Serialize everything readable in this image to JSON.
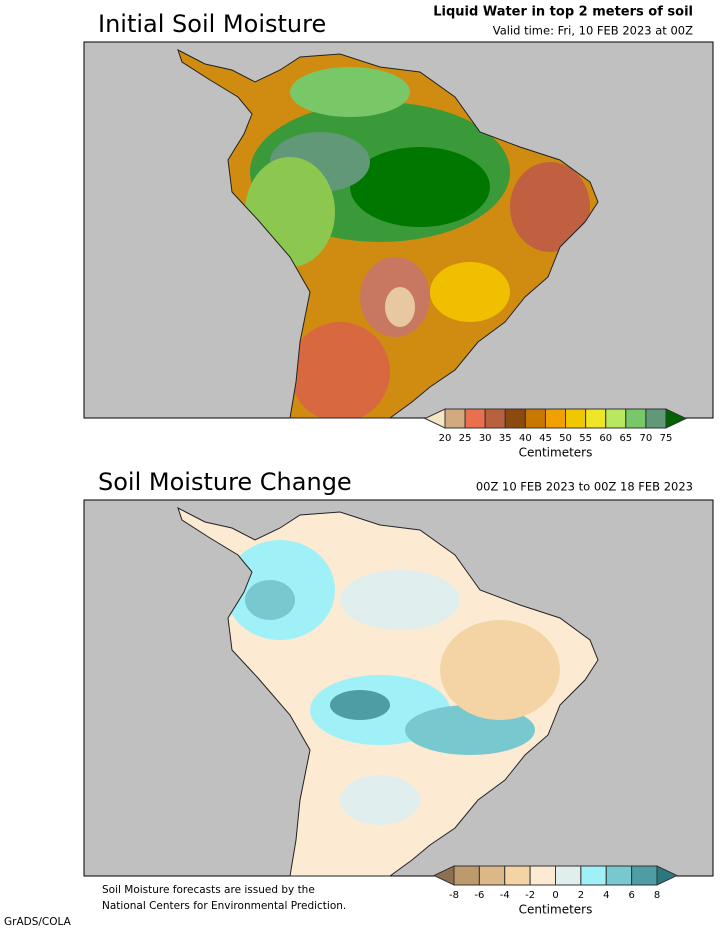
{
  "panels": [
    {
      "title": "Initial Soil Moisture",
      "heading": "Liquid Water in top 2 meters of soil",
      "subtitle": "Valid time: Fri, 10 FEB 2023 at 00Z",
      "legend": {
        "ticks": [
          20,
          25,
          30,
          35,
          40,
          45,
          50,
          55,
          60,
          65,
          70,
          75
        ],
        "colors": [
          "#f5e6c4",
          "#d2aa80",
          "#e8704f",
          "#b8613f",
          "#8a4a10",
          "#c87800",
          "#f0a000",
          "#f0c800",
          "#f0e628",
          "#b8e860",
          "#78c868",
          "#609878",
          "#008c00",
          "#006400"
        ],
        "label": "Centimeters"
      }
    },
    {
      "title": "Soil Moisture Change",
      "subtitle": "00Z 10 FEB 2023 to 00Z 18 FEB 2023",
      "legend": {
        "ticks": [
          -8,
          -6,
          -4,
          -2,
          0,
          2,
          4,
          6,
          8
        ],
        "colors": [
          "#8c7050",
          "#bc9a6c",
          "#dcb888",
          "#f4d4a4",
          "#fcebd2",
          "#e0eeee",
          "#a0f0f8",
          "#78c8d0",
          "#4e9ca4",
          "#2c7880"
        ],
        "label": "Centimeters"
      }
    }
  ],
  "footnote": [
    "Soil Moisture forecasts are issued by the",
    "National Centers for Environmental Prediction."
  ],
  "credit": "GrADS/COLA"
}
